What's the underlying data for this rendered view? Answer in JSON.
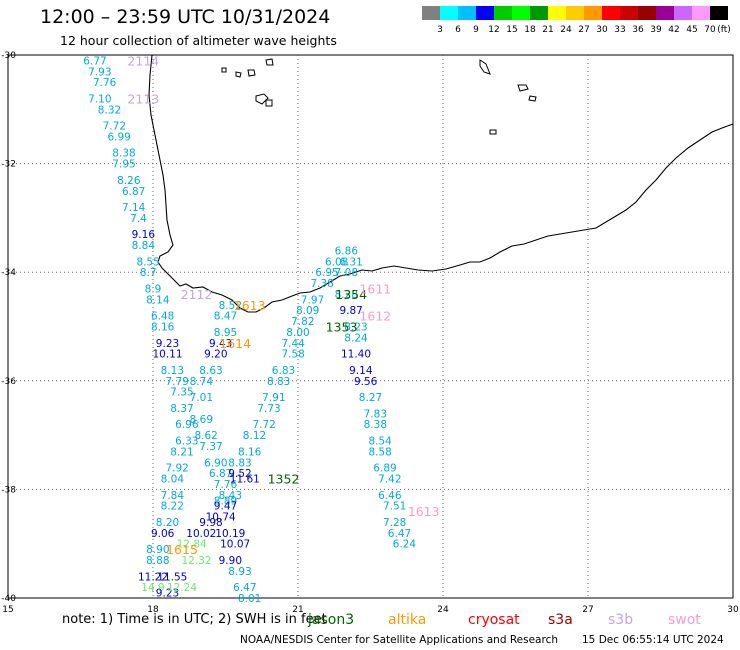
{
  "title": "12:00 – 23:59 UTC 10/31/2024",
  "subtitle": "12 hour collection of altimeter wave heights",
  "legend": {
    "colors": [
      "#808080",
      "#00ffff",
      "#00bfff",
      "#0000ff",
      "#00cc00",
      "#00ff00",
      "#009900",
      "#ffff00",
      "#ffcc00",
      "#ff9900",
      "#ff0000",
      "#cc0000",
      "#990000",
      "#990099",
      "#cc66ff",
      "#ff99ff",
      "#000000"
    ],
    "ticks": [
      "3",
      "6",
      "9",
      "12",
      "15",
      "18",
      "21",
      "24",
      "27",
      "30",
      "33",
      "36",
      "39",
      "42",
      "45",
      "70"
    ],
    "unit": "(ft)"
  },
  "axes": {
    "x_ticks": [
      "15",
      "18",
      "21",
      "24",
      "27",
      "30"
    ],
    "y_ticks": [
      "-30",
      "-32",
      "-34",
      "-36",
      "-38",
      "-40"
    ]
  },
  "note": "note:  1) Time is in UTC;  2) SWH is in feet",
  "satellites": [
    {
      "name": "jason3",
      "color": "#006400"
    },
    {
      "name": "altika",
      "color": "#ff9900"
    },
    {
      "name": "cryosat",
      "color": "#ff0000"
    },
    {
      "name": "s3a",
      "color": "#990000"
    },
    {
      "name": "s3b",
      "color": "#c8a2e8"
    },
    {
      "name": "swot",
      "color": "#ff99cc"
    }
  ],
  "footer": {
    "agency": "NOAA/NESDIS Center for Satellite Applications and Research",
    "timestamp": "15 Dec 06:55:14 UTC 2024"
  },
  "pass_labels": [
    {
      "text": "2114",
      "lon": 17.8,
      "lat": -30.1,
      "color": "#c8a2e8"
    },
    {
      "text": "2113",
      "lon": 17.8,
      "lat": -30.8,
      "color": "#c8a2e8"
    },
    {
      "text": "2112",
      "lon": 18.9,
      "lat": -34.4,
      "color": "#c8a2e8"
    },
    {
      "text": "1613",
      "lon": 20.0,
      "lat": -34.6,
      "color": "#ff9900"
    },
    {
      "text": "1614",
      "lon": 19.7,
      "lat": -35.3,
      "color": "#ff9900"
    },
    {
      "text": "1354",
      "lon": 22.1,
      "lat": -34.4,
      "color": "#006400"
    },
    {
      "text": "1611",
      "lon": 22.6,
      "lat": -34.3,
      "color": "#ff99cc"
    },
    {
      "text": "1612",
      "lon": 22.6,
      "lat": -34.8,
      "color": "#ff99cc"
    },
    {
      "text": "1353",
      "lon": 21.9,
      "lat": -35.0,
      "color": "#006400"
    },
    {
      "text": "1352",
      "lon": 20.7,
      "lat": -37.8,
      "color": "#006400"
    },
    {
      "text": "1613",
      "lon": 23.6,
      "lat": -38.4,
      "color": "#ff99cc"
    },
    {
      "text": "1615",
      "lon": 18.6,
      "lat": -39.1,
      "color": "#ff9900"
    }
  ],
  "swh_labels": [
    {
      "text": "6.77",
      "lon": 16.8,
      "lat": -30.1,
      "color": "#00aadd"
    },
    {
      "text": "7.93",
      "lon": 16.9,
      "lat": -30.3,
      "color": "#00aadd"
    },
    {
      "text": "7.76",
      "lon": 17.0,
      "lat": -30.5,
      "color": "#00aadd"
    },
    {
      "text": "7.10",
      "lon": 16.9,
      "lat": -30.8,
      "color": "#00aadd"
    },
    {
      "text": "8.32",
      "lon": 17.1,
      "lat": -31.0,
      "color": "#00aadd"
    },
    {
      "text": "7.72",
      "lon": 17.2,
      "lat": -31.3,
      "color": "#00aadd"
    },
    {
      "text": "6.99",
      "lon": 17.3,
      "lat": -31.5,
      "color": "#00aadd"
    },
    {
      "text": "8.38",
      "lon": 17.4,
      "lat": -31.8,
      "color": "#00aadd"
    },
    {
      "text": "7.95",
      "lon": 17.4,
      "lat": -32.0,
      "color": "#00aadd"
    },
    {
      "text": "8.26",
      "lon": 17.5,
      "lat": -32.3,
      "color": "#00aadd"
    },
    {
      "text": "6.87",
      "lon": 17.6,
      "lat": -32.5,
      "color": "#00aadd"
    },
    {
      "text": "7.14",
      "lon": 17.6,
      "lat": -32.8,
      "color": "#00aadd"
    },
    {
      "text": "7.4",
      "lon": 17.7,
      "lat": -33.0,
      "color": "#00aadd"
    },
    {
      "text": "9.16",
      "lon": 17.8,
      "lat": -33.3,
      "color": "#0000cc"
    },
    {
      "text": "8.84",
      "lon": 17.8,
      "lat": -33.5,
      "color": "#00aadd"
    },
    {
      "text": "8.55",
      "lon": 17.9,
      "lat": -33.8,
      "color": "#00aadd"
    },
    {
      "text": "8.7",
      "lon": 17.9,
      "lat": -34.0,
      "color": "#00aadd"
    },
    {
      "text": "8.9",
      "lon": 18.0,
      "lat": -34.3,
      "color": "#00aadd"
    },
    {
      "text": "8.14",
      "lon": 18.1,
      "lat": -34.5,
      "color": "#00aadd"
    },
    {
      "text": "6.48",
      "lon": 18.2,
      "lat": -34.8,
      "color": "#00aadd"
    },
    {
      "text": "8.16",
      "lon": 18.2,
      "lat": -35.0,
      "color": "#00aadd"
    },
    {
      "text": "9.23",
      "lon": 18.3,
      "lat": -35.3,
      "color": "#0000cc"
    },
    {
      "text": "10.11",
      "lon": 18.3,
      "lat": -35.5,
      "color": "#0000cc"
    },
    {
      "text": "8.13",
      "lon": 18.4,
      "lat": -35.8,
      "color": "#00aadd"
    },
    {
      "text": "7.79",
      "lon": 18.5,
      "lat": -36.0,
      "color": "#00aadd"
    },
    {
      "text": "7.35",
      "lon": 18.6,
      "lat": -36.2,
      "color": "#00aadd"
    },
    {
      "text": "8.37",
      "lon": 18.6,
      "lat": -36.5,
      "color": "#00aadd"
    },
    {
      "text": "6.96",
      "lon": 18.7,
      "lat": -36.8,
      "color": "#00aadd"
    },
    {
      "text": "6.33",
      "lon": 18.7,
      "lat": -37.1,
      "color": "#00aadd"
    },
    {
      "text": "8.21",
      "lon": 18.6,
      "lat": -37.3,
      "color": "#00aadd"
    },
    {
      "text": "7.92",
      "lon": 18.5,
      "lat": -37.6,
      "color": "#00aadd"
    },
    {
      "text": "8.04",
      "lon": 18.4,
      "lat": -37.8,
      "color": "#00aadd"
    },
    {
      "text": "7.84",
      "lon": 18.4,
      "lat": -38.1,
      "color": "#00aadd"
    },
    {
      "text": "8.22",
      "lon": 18.4,
      "lat": -38.3,
      "color": "#00aadd"
    },
    {
      "text": "8.20",
      "lon": 18.3,
      "lat": -38.6,
      "color": "#00aadd"
    },
    {
      "text": "9.06",
      "lon": 18.2,
      "lat": -38.8,
      "color": "#0000cc"
    },
    {
      "text": "8.90",
      "lon": 18.1,
      "lat": -39.1,
      "color": "#00aadd"
    },
    {
      "text": "8.88",
      "lon": 18.1,
      "lat": -39.3,
      "color": "#00aadd"
    },
    {
      "text": "11.22",
      "lon": 18.0,
      "lat": -39.6,
      "color": "#0000cc"
    },
    {
      "text": "14.9",
      "lon": 18.0,
      "lat": -39.8,
      "color": "#66ee66"
    },
    {
      "text": "9.23",
      "lon": 18.3,
      "lat": -39.9,
      "color": "#0000cc"
    },
    {
      "text": "11.55",
      "lon": 18.4,
      "lat": -39.6,
      "color": "#0000cc"
    },
    {
      "text": "12.24",
      "lon": 18.6,
      "lat": -39.8,
      "color": "#66ee66"
    },
    {
      "text": "12.32",
      "lon": 18.9,
      "lat": -39.3,
      "color": "#66ee66"
    },
    {
      "text": "12.84",
      "lon": 18.8,
      "lat": -39.0,
      "color": "#66ee66"
    },
    {
      "text": "10.02",
      "lon": 19.0,
      "lat": -38.8,
      "color": "#0000cc"
    },
    {
      "text": "9.98",
      "lon": 19.2,
      "lat": -38.6,
      "color": "#0000cc"
    },
    {
      "text": "10.74",
      "lon": 19.4,
      "lat": -38.5,
      "color": "#0000cc"
    },
    {
      "text": "10.19",
      "lon": 19.6,
      "lat": -38.8,
      "color": "#0000cc"
    },
    {
      "text": "10.07",
      "lon": 19.7,
      "lat": -39.0,
      "color": "#0000cc"
    },
    {
      "text": "9.90",
      "lon": 19.6,
      "lat": -39.3,
      "color": "#0000cc"
    },
    {
      "text": "8.93",
      "lon": 19.8,
      "lat": -39.5,
      "color": "#00aadd"
    },
    {
      "text": "6.47",
      "lon": 19.9,
      "lat": -39.8,
      "color": "#00aadd"
    },
    {
      "text": "8.01",
      "lon": 20.0,
      "lat": -40.0,
      "color": "#00aadd"
    },
    {
      "text": "8.52",
      "lon": 19.6,
      "lat": -34.6,
      "color": "#00aadd"
    },
    {
      "text": "8.47",
      "lon": 19.5,
      "lat": -34.8,
      "color": "#00aadd"
    },
    {
      "text": "8.95",
      "lon": 19.5,
      "lat": -35.1,
      "color": "#00aadd"
    },
    {
      "text": "9.43",
      "lon": 19.4,
      "lat": -35.3,
      "color": "#0000cc"
    },
    {
      "text": "9.20",
      "lon": 19.3,
      "lat": -35.5,
      "color": "#0000cc"
    },
    {
      "text": "8.63",
      "lon": 19.2,
      "lat": -35.8,
      "color": "#00aadd"
    },
    {
      "text": "8.74",
      "lon": 19.0,
      "lat": -36.0,
      "color": "#00aadd"
    },
    {
      "text": "7.01",
      "lon": 19.0,
      "lat": -36.3,
      "color": "#00aadd"
    },
    {
      "text": "8.69",
      "lon": 19.0,
      "lat": -36.7,
      "color": "#00aadd"
    },
    {
      "text": "8.62",
      "lon": 19.1,
      "lat": -37.0,
      "color": "#00aadd"
    },
    {
      "text": "7.37",
      "lon": 19.2,
      "lat": -37.2,
      "color": "#00aadd"
    },
    {
      "text": "6.90",
      "lon": 19.3,
      "lat": -37.5,
      "color": "#00aadd"
    },
    {
      "text": "6.87",
      "lon": 19.4,
      "lat": -37.7,
      "color": "#00aadd"
    },
    {
      "text": "7.76",
      "lon": 19.5,
      "lat": -37.9,
      "color": "#00aadd"
    },
    {
      "text": "8.89",
      "lon": 19.5,
      "lat": -38.2,
      "color": "#00aadd"
    },
    {
      "text": "9.47",
      "lon": 19.5,
      "lat": -38.3,
      "color": "#0000cc"
    },
    {
      "text": "8.43",
      "lon": 19.6,
      "lat": -38.1,
      "color": "#00aadd"
    },
    {
      "text": "9.52",
      "lon": 19.8,
      "lat": -37.7,
      "color": "#0000cc"
    },
    {
      "text": "11.61",
      "lon": 19.9,
      "lat": -37.8,
      "color": "#0000cc"
    },
    {
      "text": "8.83",
      "lon": 19.8,
      "lat": -37.5,
      "color": "#00aadd"
    },
    {
      "text": "8.16",
      "lon": 20.0,
      "lat": -37.3,
      "color": "#00aadd"
    },
    {
      "text": "8.12",
      "lon": 20.1,
      "lat": -37.0,
      "color": "#00aadd"
    },
    {
      "text": "7.72",
      "lon": 20.3,
      "lat": -36.8,
      "color": "#00aadd"
    },
    {
      "text": "7.73",
      "lon": 20.4,
      "lat": -36.5,
      "color": "#00aadd"
    },
    {
      "text": "7.91",
      "lon": 20.5,
      "lat": -36.3,
      "color": "#00aadd"
    },
    {
      "text": "8.83",
      "lon": 20.6,
      "lat": -36.0,
      "color": "#00aadd"
    },
    {
      "text": "6.83",
      "lon": 20.7,
      "lat": -35.8,
      "color": "#00aadd"
    },
    {
      "text": "7.58",
      "lon": 20.9,
      "lat": -35.5,
      "color": "#00aadd"
    },
    {
      "text": "7.44",
      "lon": 20.9,
      "lat": -35.3,
      "color": "#00aadd"
    },
    {
      "text": "8.00",
      "lon": 21.0,
      "lat": -35.1,
      "color": "#00aadd"
    },
    {
      "text": "7.82",
      "lon": 21.1,
      "lat": -34.9,
      "color": "#00aadd"
    },
    {
      "text": "8.09",
      "lon": 21.2,
      "lat": -34.7,
      "color": "#00aadd"
    },
    {
      "text": "7.97",
      "lon": 21.3,
      "lat": -34.5,
      "color": "#00aadd"
    },
    {
      "text": "7.38",
      "lon": 21.5,
      "lat": -34.2,
      "color": "#00aadd"
    },
    {
      "text": "6.95",
      "lon": 21.6,
      "lat": -34.0,
      "color": "#00aadd"
    },
    {
      "text": "6.08",
      "lon": 21.8,
      "lat": -33.8,
      "color": "#00aadd"
    },
    {
      "text": "6.86",
      "lon": 22.0,
      "lat": -33.6,
      "color": "#00aadd"
    },
    {
      "text": "6.31",
      "lon": 22.1,
      "lat": -33.8,
      "color": "#00aadd"
    },
    {
      "text": "7.08",
      "lon": 22.0,
      "lat": -34.0,
      "color": "#00aadd"
    },
    {
      "text": "8.28",
      "lon": 22.0,
      "lat": -34.4,
      "color": "#00aadd"
    },
    {
      "text": "9.87",
      "lon": 22.1,
      "lat": -34.7,
      "color": "#0000cc"
    },
    {
      "text": "8.23",
      "lon": 22.2,
      "lat": -35.0,
      "color": "#00aadd"
    },
    {
      "text": "8.24",
      "lon": 22.2,
      "lat": -35.2,
      "color": "#00aadd"
    },
    {
      "text": "11.40",
      "lon": 22.2,
      "lat": -35.5,
      "color": "#0000cc"
    },
    {
      "text": "9.14",
      "lon": 22.3,
      "lat": -35.8,
      "color": "#0000cc"
    },
    {
      "text": "9.56",
      "lon": 22.4,
      "lat": -36.0,
      "color": "#0000cc"
    },
    {
      "text": "8.27",
      "lon": 22.5,
      "lat": -36.3,
      "color": "#00aadd"
    },
    {
      "text": "7.83",
      "lon": 22.6,
      "lat": -36.6,
      "color": "#00aadd"
    },
    {
      "text": "8.38",
      "lon": 22.6,
      "lat": -36.8,
      "color": "#00aadd"
    },
    {
      "text": "8.54",
      "lon": 22.7,
      "lat": -37.1,
      "color": "#00aadd"
    },
    {
      "text": "8.58",
      "lon": 22.7,
      "lat": -37.3,
      "color": "#00aadd"
    },
    {
      "text": "6.89",
      "lon": 22.8,
      "lat": -37.6,
      "color": "#00aadd"
    },
    {
      "text": "7.42",
      "lon": 22.9,
      "lat": -37.8,
      "color": "#00aadd"
    },
    {
      "text": "6.46",
      "lon": 22.9,
      "lat": -38.1,
      "color": "#00aadd"
    },
    {
      "text": "7.51",
      "lon": 23.0,
      "lat": -38.3,
      "color": "#00aadd"
    },
    {
      "text": "7.28",
      "lon": 23.0,
      "lat": -38.6,
      "color": "#00aadd"
    },
    {
      "text": "6.47",
      "lon": 23.1,
      "lat": -38.8,
      "color": "#00aadd"
    },
    {
      "text": "6.24",
      "lon": 23.2,
      "lat": -39.0,
      "color": "#00aadd"
    }
  ]
}
